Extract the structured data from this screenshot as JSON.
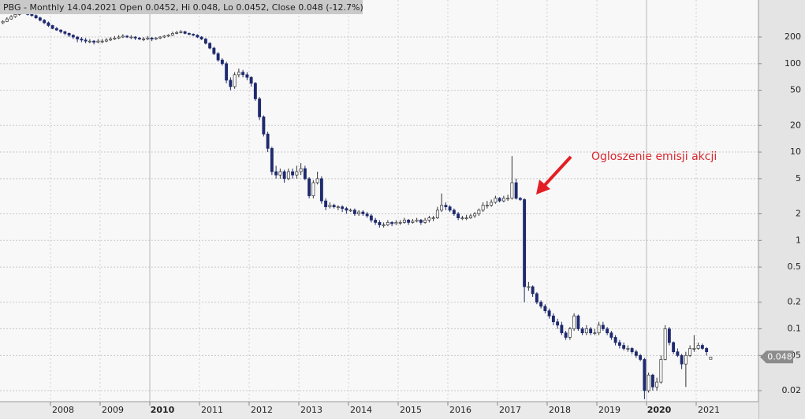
{
  "chart_data": {
    "type": "candlestick",
    "title": "PBG - Monthly 14.04.2021 Open 0.0452, Hi 0.048, Lo 0.0452, Close 0.048 (-12.7%)",
    "annotation": "Ogloszenie emisji akcji",
    "log_scale": true,
    "grid": true,
    "up_color": "#ffffff",
    "down_color": "#1f2a6e",
    "ylim": [
      0.015,
      525
    ],
    "yticks": [
      200,
      100,
      50,
      20,
      10,
      5,
      2,
      1,
      0.5,
      0.2,
      0.1,
      0.05,
      0.02
    ],
    "last_value": 0.048,
    "bold_category_indices": [
      36,
      156
    ],
    "categories": [
      null,
      null,
      null,
      null,
      null,
      null,
      null,
      null,
      null,
      null,
      null,
      null,
      "2008",
      null,
      null,
      null,
      null,
      null,
      null,
      null,
      null,
      null,
      null,
      null,
      "2009",
      null,
      null,
      null,
      null,
      null,
      null,
      null,
      null,
      null,
      null,
      null,
      "2010",
      null,
      null,
      null,
      null,
      null,
      null,
      null,
      null,
      null,
      null,
      null,
      "2011",
      null,
      null,
      null,
      null,
      null,
      null,
      null,
      null,
      null,
      null,
      null,
      "2012",
      null,
      null,
      null,
      null,
      null,
      null,
      null,
      null,
      null,
      null,
      null,
      "2013",
      null,
      null,
      null,
      null,
      null,
      null,
      null,
      null,
      null,
      null,
      null,
      "2014",
      null,
      null,
      null,
      null,
      null,
      null,
      null,
      null,
      null,
      null,
      null,
      "2015",
      null,
      null,
      null,
      null,
      null,
      null,
      null,
      null,
      null,
      null,
      null,
      "2016",
      null,
      null,
      null,
      null,
      null,
      null,
      null,
      null,
      null,
      null,
      null,
      "2017",
      null,
      null,
      null,
      null,
      null,
      null,
      null,
      null,
      null,
      null,
      null,
      "2018",
      null,
      null,
      null,
      null,
      null,
      null,
      null,
      null,
      null,
      null,
      null,
      "2019",
      null,
      null,
      null,
      null,
      null,
      null,
      null,
      null,
      null,
      null,
      null,
      "2020",
      null,
      null,
      null,
      null,
      null,
      null,
      null,
      null,
      null,
      null,
      null,
      "2021",
      null,
      null,
      null
    ],
    "candles": [
      [
        290,
        310,
        280,
        300
      ],
      [
        300,
        335,
        295,
        320
      ],
      [
        320,
        355,
        315,
        340
      ],
      [
        340,
        375,
        330,
        360
      ],
      [
        360,
        395,
        350,
        380
      ],
      [
        380,
        400,
        365,
        380
      ],
      [
        380,
        390,
        350,
        360
      ],
      [
        360,
        370,
        340,
        350
      ],
      [
        350,
        360,
        320,
        330
      ],
      [
        330,
        340,
        300,
        310
      ],
      [
        310,
        320,
        280,
        290
      ],
      [
        290,
        300,
        260,
        270
      ],
      [
        270,
        275,
        245,
        250
      ],
      [
        250,
        260,
        235,
        240
      ],
      [
        240,
        245,
        220,
        230
      ],
      [
        230,
        235,
        210,
        220
      ],
      [
        220,
        225,
        200,
        210
      ],
      [
        210,
        215,
        190,
        200
      ],
      [
        200,
        205,
        175,
        190
      ],
      [
        190,
        200,
        175,
        185
      ],
      [
        185,
        195,
        170,
        180
      ],
      [
        180,
        190,
        170,
        180
      ],
      [
        180,
        185,
        165,
        175
      ],
      [
        175,
        190,
        170,
        180
      ],
      [
        180,
        190,
        170,
        180
      ],
      [
        180,
        195,
        175,
        185
      ],
      [
        185,
        200,
        180,
        190
      ],
      [
        190,
        205,
        185,
        195
      ],
      [
        195,
        210,
        190,
        200
      ],
      [
        200,
        215,
        195,
        205
      ],
      [
        205,
        210,
        195,
        200
      ],
      [
        200,
        210,
        190,
        200
      ],
      [
        200,
        205,
        185,
        195
      ],
      [
        195,
        200,
        185,
        190
      ],
      [
        190,
        200,
        180,
        190
      ],
      [
        190,
        205,
        185,
        195
      ],
      [
        195,
        200,
        180,
        190
      ],
      [
        190,
        200,
        185,
        195
      ],
      [
        195,
        205,
        190,
        200
      ],
      [
        200,
        210,
        195,
        205
      ],
      [
        205,
        215,
        200,
        210
      ],
      [
        210,
        230,
        205,
        220
      ],
      [
        220,
        235,
        215,
        225
      ],
      [
        225,
        240,
        220,
        230
      ],
      [
        230,
        235,
        215,
        220
      ],
      [
        220,
        225,
        210,
        215
      ],
      [
        215,
        220,
        205,
        210
      ],
      [
        210,
        215,
        195,
        200
      ],
      [
        200,
        205,
        185,
        190
      ],
      [
        190,
        195,
        165,
        170
      ],
      [
        170,
        175,
        145,
        150
      ],
      [
        150,
        155,
        125,
        130
      ],
      [
        130,
        135,
        105,
        110
      ],
      [
        110,
        115,
        95,
        100
      ],
      [
        100,
        105,
        60,
        65
      ],
      [
        65,
        70,
        50,
        55
      ],
      [
        55,
        80,
        52,
        75
      ],
      [
        75,
        88,
        70,
        80
      ],
      [
        80,
        85,
        70,
        75
      ],
      [
        75,
        80,
        65,
        70
      ],
      [
        70,
        72,
        55,
        60
      ],
      [
        60,
        62,
        38,
        40
      ],
      [
        40,
        42,
        23,
        25
      ],
      [
        25,
        26,
        15,
        16
      ],
      [
        16,
        17,
        10,
        11
      ],
      [
        11,
        11.5,
        5.5,
        6
      ],
      [
        6,
        7,
        5,
        5.5
      ],
      [
        5.5,
        6.5,
        5,
        6
      ],
      [
        6,
        6.3,
        4.5,
        5
      ],
      [
        5,
        6.5,
        4.8,
        6
      ],
      [
        6,
        6.5,
        5,
        5.5
      ],
      [
        5.5,
        7,
        5,
        6
      ],
      [
        6,
        7.5,
        5.5,
        6.5
      ],
      [
        6.5,
        7,
        4.8,
        5
      ],
      [
        5,
        5.2,
        3,
        3.2
      ],
      [
        3.2,
        4.8,
        3,
        4.5
      ],
      [
        4.5,
        6,
        4.3,
        5
      ],
      [
        5,
        5.3,
        2.6,
        2.8
      ],
      [
        2.8,
        3,
        2.2,
        2.4
      ],
      [
        2.4,
        2.7,
        2.3,
        2.5
      ],
      [
        2.5,
        2.6,
        2.3,
        2.4
      ],
      [
        2.4,
        2.5,
        2.2,
        2.4
      ],
      [
        2.4,
        2.5,
        2.1,
        2.3
      ],
      [
        2.3,
        2.4,
        2,
        2.2
      ],
      [
        2.2,
        2.3,
        2.1,
        2.2
      ],
      [
        2.2,
        2.3,
        1.9,
        2
      ],
      [
        2,
        2.2,
        1.9,
        2.1
      ],
      [
        2.1,
        2.2,
        1.9,
        2
      ],
      [
        2,
        2.1,
        1.8,
        1.9
      ],
      [
        1.9,
        2,
        1.6,
        1.7
      ],
      [
        1.7,
        1.8,
        1.5,
        1.6
      ],
      [
        1.6,
        1.7,
        1.4,
        1.5
      ],
      [
        1.5,
        1.6,
        1.4,
        1.5
      ],
      [
        1.5,
        1.7,
        1.45,
        1.6
      ],
      [
        1.6,
        1.65,
        1.45,
        1.55
      ],
      [
        1.55,
        1.7,
        1.5,
        1.6
      ],
      [
        1.6,
        1.7,
        1.5,
        1.6
      ],
      [
        1.6,
        1.8,
        1.55,
        1.7
      ],
      [
        1.7,
        1.75,
        1.5,
        1.6
      ],
      [
        1.6,
        1.75,
        1.55,
        1.65
      ],
      [
        1.65,
        1.8,
        1.6,
        1.7
      ],
      [
        1.7,
        1.75,
        1.5,
        1.6
      ],
      [
        1.6,
        1.8,
        1.55,
        1.7
      ],
      [
        1.7,
        1.9,
        1.6,
        1.8
      ],
      [
        1.8,
        1.9,
        1.65,
        1.8
      ],
      [
        1.8,
        2.4,
        1.75,
        2.2
      ],
      [
        2.2,
        3.4,
        2.1,
        2.5
      ],
      [
        2.5,
        2.7,
        2.2,
        2.4
      ],
      [
        2.4,
        2.5,
        2.1,
        2.2
      ],
      [
        2.2,
        2.3,
        1.9,
        2
      ],
      [
        2,
        2.1,
        1.7,
        1.8
      ],
      [
        1.8,
        1.9,
        1.7,
        1.8
      ],
      [
        1.8,
        1.95,
        1.7,
        1.8
      ],
      [
        1.8,
        2,
        1.75,
        1.9
      ],
      [
        1.9,
        2.1,
        1.8,
        2
      ],
      [
        2,
        2.3,
        1.9,
        2.2
      ],
      [
        2.2,
        2.7,
        2.1,
        2.5
      ],
      [
        2.5,
        2.8,
        2.3,
        2.5
      ],
      [
        2.5,
        2.9,
        2.4,
        2.7
      ],
      [
        2.7,
        3.2,
        2.6,
        3
      ],
      [
        3,
        3.1,
        2.7,
        2.8
      ],
      [
        2.8,
        3.2,
        2.7,
        3
      ],
      [
        3,
        3.3,
        2.8,
        3
      ],
      [
        3,
        9,
        2.9,
        4.5
      ],
      [
        4.5,
        5,
        2.9,
        3
      ],
      [
        3,
        3.1,
        2.8,
        2.9
      ],
      [
        2.9,
        3,
        0.2,
        0.3
      ],
      [
        0.3,
        0.34,
        0.27,
        0.3
      ],
      [
        0.3,
        0.31,
        0.23,
        0.25
      ],
      [
        0.25,
        0.26,
        0.19,
        0.2
      ],
      [
        0.2,
        0.21,
        0.17,
        0.18
      ],
      [
        0.18,
        0.19,
        0.15,
        0.16
      ],
      [
        0.16,
        0.17,
        0.13,
        0.14
      ],
      [
        0.14,
        0.15,
        0.11,
        0.12
      ],
      [
        0.12,
        0.13,
        0.1,
        0.11
      ],
      [
        0.11,
        0.12,
        0.085,
        0.09
      ],
      [
        0.09,
        0.095,
        0.075,
        0.08
      ],
      [
        0.08,
        0.105,
        0.075,
        0.1
      ],
      [
        0.1,
        0.15,
        0.095,
        0.14
      ],
      [
        0.14,
        0.145,
        0.095,
        0.1
      ],
      [
        0.1,
        0.105,
        0.085,
        0.09
      ],
      [
        0.09,
        0.11,
        0.085,
        0.1
      ],
      [
        0.1,
        0.105,
        0.085,
        0.09
      ],
      [
        0.09,
        0.1,
        0.085,
        0.09
      ],
      [
        0.09,
        0.12,
        0.085,
        0.11
      ],
      [
        0.11,
        0.12,
        0.095,
        0.1
      ],
      [
        0.1,
        0.105,
        0.085,
        0.09
      ],
      [
        0.09,
        0.095,
        0.075,
        0.08
      ],
      [
        0.08,
        0.085,
        0.065,
        0.07
      ],
      [
        0.07,
        0.075,
        0.06,
        0.065
      ],
      [
        0.065,
        0.07,
        0.057,
        0.06
      ],
      [
        0.06,
        0.065,
        0.055,
        0.06
      ],
      [
        0.06,
        0.062,
        0.052,
        0.055
      ],
      [
        0.055,
        0.058,
        0.047,
        0.05
      ],
      [
        0.05,
        0.052,
        0.043,
        0.045
      ],
      [
        0.045,
        0.047,
        0.016,
        0.02
      ],
      [
        0.02,
        0.032,
        0.019,
        0.03
      ],
      [
        0.03,
        0.031,
        0.02,
        0.022
      ],
      [
        0.022,
        0.028,
        0.02,
        0.025
      ],
      [
        0.025,
        0.05,
        0.024,
        0.045
      ],
      [
        0.045,
        0.11,
        0.044,
        0.1
      ],
      [
        0.1,
        0.105,
        0.065,
        0.07
      ],
      [
        0.07,
        0.072,
        0.052,
        0.055
      ],
      [
        0.055,
        0.06,
        0.048,
        0.05
      ],
      [
        0.05,
        0.052,
        0.035,
        0.04
      ],
      [
        0.04,
        0.055,
        0.022,
        0.05
      ],
      [
        0.05,
        0.065,
        0.048,
        0.06
      ],
      [
        0.06,
        0.085,
        0.055,
        0.06
      ],
      [
        0.06,
        0.07,
        0.058,
        0.065
      ],
      [
        0.065,
        0.068,
        0.058,
        0.06
      ],
      [
        0.06,
        0.062,
        0.05,
        0.055
      ],
      [
        0.0452,
        0.048,
        0.0452,
        0.048
      ]
    ]
  }
}
